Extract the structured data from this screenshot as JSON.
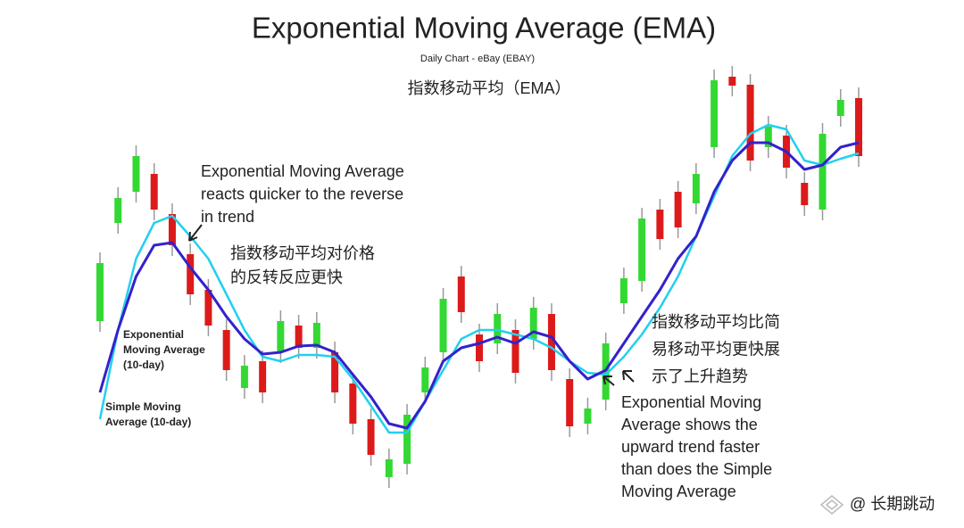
{
  "chart_data": {
    "type": "candlestick",
    "title": "Exponential Moving Average (EMA)",
    "subtitle": "Daily Chart - eBay (EBAY)",
    "subtitle_cn": "指数移动平均（EMA）",
    "ylim": [
      8,
      600
    ],
    "up_color": "#33d833",
    "down_color": "#dd1a1a",
    "open": [
      240,
      350,
      385,
      405,
      360,
      315,
      275,
      230,
      165,
      195,
      205,
      235,
      210,
      205,
      170,
      130,
      65,
      80,
      160,
      205,
      290,
      225,
      215,
      230,
      220,
      248,
      175,
      125,
      152,
      260,
      285,
      365,
      385,
      372,
      435,
      514,
      505,
      435,
      448,
      395,
      365,
      470,
      490
    ],
    "high": [
      317,
      390,
      437,
      417,
      372,
      327,
      287,
      242,
      202,
      207,
      252,
      247,
      250,
      217,
      182,
      142,
      97,
      147,
      200,
      277,
      302,
      237,
      260,
      242,
      267,
      260,
      187,
      154,
      227,
      300,
      367,
      377,
      397,
      417,
      522,
      526,
      517,
      470,
      460,
      407,
      462,
      500,
      502
    ],
    "low": [
      228,
      338,
      373,
      353,
      313,
      258,
      223,
      173,
      153,
      148,
      193,
      198,
      198,
      148,
      113,
      78,
      53,
      68,
      148,
      193,
      238,
      183,
      203,
      170,
      208,
      173,
      110,
      113,
      140,
      248,
      273,
      320,
      333,
      360,
      423,
      492,
      408,
      423,
      400,
      358,
      353,
      458,
      413
    ],
    "close": [
      305,
      378,
      425,
      365,
      325,
      270,
      235,
      185,
      190,
      160,
      240,
      210,
      238,
      160,
      125,
      90,
      85,
      135,
      188,
      265,
      250,
      195,
      248,
      182,
      255,
      185,
      122,
      142,
      215,
      288,
      355,
      332,
      345,
      405,
      510,
      504,
      420,
      458,
      412,
      370,
      450,
      488,
      425
    ],
    "series": [
      {
        "name": "Exponential Moving Average (10-day)",
        "color": "#3322cc",
        "values": [
          160,
          230,
          290,
          325,
          328,
          300,
          275,
          245,
          220,
          203,
          205,
          212,
          213,
          205,
          180,
          155,
          125,
          120,
          150,
          195,
          210,
          215,
          222,
          215,
          228,
          222,
          195,
          175,
          185,
          215,
          245,
          275,
          310,
          335,
          385,
          420,
          440,
          440,
          430,
          410,
          415,
          435,
          440
        ]
      },
      {
        "name": "Simple Moving Average (10-day)",
        "color": "#22d0ee",
        "values": [
          130,
          230,
          310,
          350,
          358,
          335,
          310,
          270,
          230,
          200,
          195,
          202,
          202,
          200,
          175,
          145,
          115,
          115,
          150,
          185,
          220,
          230,
          230,
          225,
          220,
          210,
          195,
          182,
          180,
          200,
          225,
          255,
          290,
          335,
          380,
          425,
          450,
          460,
          455,
          420,
          415,
          422,
          428
        ]
      }
    ],
    "line_labels": [
      [
        "Exponential",
        "Moving Average",
        "(10-day)"
      ],
      [
        "Simple Moving",
        "Average (10-day)"
      ]
    ],
    "annotations": [
      [
        "Exponential Moving Average",
        "reacts quicker to the reverse",
        "in trend"
      ],
      [
        "指数移动平均对价格",
        "的反转反应更快"
      ],
      [
        "指数移动平均比简",
        "易移动平均更快展",
        "示了上升趋势"
      ],
      [
        "Exponential Moving",
        "Average shows the",
        "upward trend faster",
        "than does the Simple",
        "Moving Average"
      ]
    ],
    "watermark": "@ 长期跳动"
  }
}
